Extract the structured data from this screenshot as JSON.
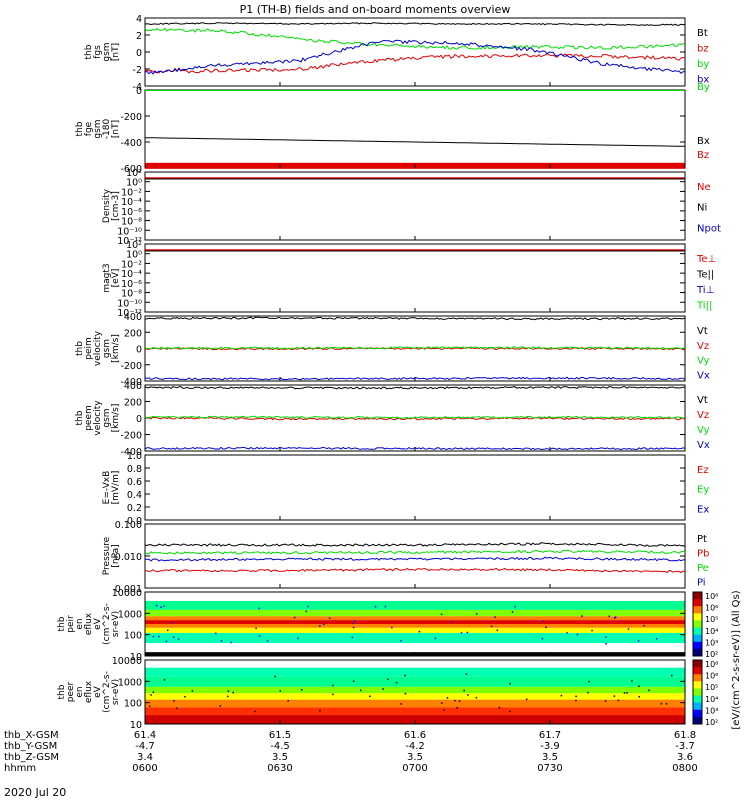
{
  "title": "P1 (TH-B) fields and on-board moments overview",
  "date": "2020 Jul 20",
  "colors": {
    "black": "#000000",
    "red": "#e00000",
    "green": "#00dd00",
    "blue": "#0000cc",
    "colorbar": [
      "#00007f",
      "#0000ff",
      "#00b0ff",
      "#00ffb0",
      "#80ff00",
      "#ffff00",
      "#ff8000",
      "#e00000",
      "#8b0000"
    ]
  },
  "time_axis": {
    "rows": [
      {
        "label": "thb_X-GSM",
        "values": [
          "61.4",
          "61.5",
          "61.6",
          "61.7",
          "61.8"
        ]
      },
      {
        "label": "thb_Y-GSM",
        "values": [
          "-4.7",
          "-4.5",
          "-4.2",
          "-3.9",
          "-3.7"
        ]
      },
      {
        "label": "thb_Z-GSM",
        "values": [
          "3.4",
          "3.5",
          "3.5",
          "3.5",
          "3.6"
        ]
      },
      {
        "label": "hhmm",
        "values": [
          "0600",
          "0630",
          "0700",
          "0730",
          "0800"
        ]
      }
    ]
  },
  "chart_data": [
    {
      "type": "line",
      "ylabel": [
        "thb",
        "fgs",
        "gsm",
        "[nT]"
      ],
      "ylim": [
        -4,
        4
      ],
      "yticks": [
        "4",
        "2",
        "0",
        "-2",
        "-4"
      ],
      "series": [
        {
          "name": "Bt",
          "color": "black",
          "values": [
            3.3,
            3.4,
            3.3,
            3.4,
            3.3,
            3.3,
            3.2,
            3.2
          ]
        },
        {
          "name": "bz",
          "color": "red",
          "values": [
            -2.3,
            -2.2,
            -2.0,
            -1.0,
            -0.5,
            -0.4,
            -0.5,
            -0.8
          ]
        },
        {
          "name": "by",
          "color": "green",
          "values": [
            2.6,
            2.5,
            1.5,
            0.8,
            0.5,
            0.6,
            0.5,
            0.8
          ]
        },
        {
          "name": "bx",
          "color": "blue",
          "values": [
            -2.5,
            -1.5,
            -1.0,
            1.2,
            1.1,
            0.3,
            -1.5,
            -2.4
          ]
        }
      ]
    },
    {
      "type": "line",
      "ylabel": [
        "thb",
        "fge",
        "gsm",
        "-180",
        "[nT]"
      ],
      "ylim": [
        -720,
        0
      ],
      "yticks": [
        "0",
        "-200",
        "-400",
        "-600"
      ],
      "series": [
        {
          "name": "By",
          "color": "green",
          "values": [
            -5,
            -5,
            -5,
            -5,
            -5
          ]
        },
        {
          "name": "Bx",
          "color": "black",
          "values": [
            -440,
            -460,
            -480,
            -500,
            -520
          ]
        },
        {
          "name": "Bz",
          "color": "red",
          "values": [
            -700,
            -700,
            -700,
            -700,
            -700
          ]
        }
      ]
    },
    {
      "type": "line",
      "ylabel": [
        "Density",
        "[cm-3]"
      ],
      "log": true,
      "yticks": [
        "10²",
        "10⁰",
        "10⁻²",
        "10⁻⁴",
        "10⁻⁶",
        "10⁻⁸",
        "10⁻¹⁰",
        "10⁻¹²"
      ],
      "legend": [
        "Ne",
        "Ni",
        "Npot"
      ],
      "legend_colors": [
        "red",
        "black",
        "blue"
      ]
    },
    {
      "type": "line",
      "ylabel": [
        "magt3",
        "[eV]"
      ],
      "log": true,
      "yticks": [
        "10²",
        "10⁰",
        "10⁻²",
        "10⁻⁴",
        "10⁻⁶",
        "10⁻⁸",
        "10⁻¹⁰",
        "10⁻¹²"
      ],
      "legend": [
        "Te⊥",
        "Te||",
        "Ti⊥",
        "Ti||"
      ],
      "legend_colors": [
        "red",
        "black",
        "blue",
        "green"
      ]
    },
    {
      "type": "line",
      "ylabel": [
        "thb",
        "peim",
        "velocity",
        "gsm",
        "[km/s]"
      ],
      "ylim": [
        -400,
        400
      ],
      "yticks": [
        "400",
        "200",
        "0",
        "-200",
        "-400"
      ],
      "series": [
        {
          "name": "Vt",
          "color": "black",
          "values": [
            370,
            375,
            370,
            365,
            370
          ]
        },
        {
          "name": "Vz",
          "color": "red",
          "values": [
            0,
            -5,
            0,
            0,
            -5
          ]
        },
        {
          "name": "Vy",
          "color": "green",
          "values": [
            5,
            5,
            10,
            10,
            5
          ]
        },
        {
          "name": "Vx",
          "color": "blue",
          "values": [
            -370,
            -375,
            -370,
            -365,
            -370
          ]
        }
      ]
    },
    {
      "type": "line",
      "ylabel": [
        "thb",
        "peem",
        "velocity",
        "gsm",
        "[km/s]"
      ],
      "ylim": [
        -400,
        400
      ],
      "yticks": [
        "400",
        "200",
        "0",
        "-200",
        "-400"
      ],
      "series": [
        {
          "name": "Vt",
          "color": "black",
          "values": [
            370,
            365,
            365,
            370,
            370
          ]
        },
        {
          "name": "Vz",
          "color": "red",
          "values": [
            0,
            -10,
            -10,
            -5,
            -10
          ]
        },
        {
          "name": "Vy",
          "color": "green",
          "values": [
            10,
            10,
            5,
            10,
            5
          ]
        },
        {
          "name": "Vx",
          "color": "blue",
          "values": [
            -370,
            -365,
            -370,
            -375,
            -370
          ]
        }
      ]
    },
    {
      "type": "line",
      "ylabel": [
        "E=-VxB",
        "[mV/m]"
      ],
      "ylim": [
        0,
        1
      ],
      "yticks": [
        "1.0",
        "0.8",
        "0.6",
        "0.4",
        "0.2",
        "0.0"
      ],
      "legend": [
        "Ez",
        "Ey",
        "Ex"
      ],
      "legend_colors": [
        "red",
        "green",
        "blue"
      ]
    },
    {
      "type": "line",
      "ylabel": [
        "Pressure",
        "[nPa]"
      ],
      "log": true,
      "yticks": [
        "0.100",
        "0.010",
        "0.001"
      ],
      "series": [
        {
          "name": "Pt",
          "color": "black",
          "values": [
            0.022,
            0.022,
            0.022,
            0.024,
            0.021
          ]
        },
        {
          "name": "Pb",
          "color": "red",
          "values": [
            0.0035,
            0.0035,
            0.0038,
            0.0037,
            0.0032
          ]
        },
        {
          "name": "Pe",
          "color": "green",
          "values": [
            0.0125,
            0.0125,
            0.013,
            0.014,
            0.013
          ]
        },
        {
          "name": "Pi",
          "color": "blue",
          "values": [
            0.0075,
            0.008,
            0.008,
            0.0085,
            0.0075
          ]
        }
      ]
    },
    {
      "type": "heatmap",
      "ylabel": [
        "thb",
        "peir",
        "en",
        "eflux",
        "eV",
        "(cm^2-s-",
        "sr-eV)"
      ],
      "yticks": [
        "10000",
        "1000",
        "100",
        "10"
      ],
      "colorbar_label": "[eV/(cm^2-s-sr-eV)] (All Qs)"
    },
    {
      "type": "heatmap",
      "ylabel": [
        "thb",
        "peer",
        "en",
        "eflux",
        "eV",
        "(cm^2-s-",
        "sr-eV)"
      ],
      "yticks": [
        "10000",
        "1000",
        "100",
        "10"
      ],
      "colorbar_label": "[eV/(cm^2-s-sr-eV)] (All Qs)"
    }
  ],
  "colorbar_ticks": [
    "10⁸",
    "10⁶",
    "10⁵",
    "10⁴",
    "10³",
    "10²"
  ]
}
